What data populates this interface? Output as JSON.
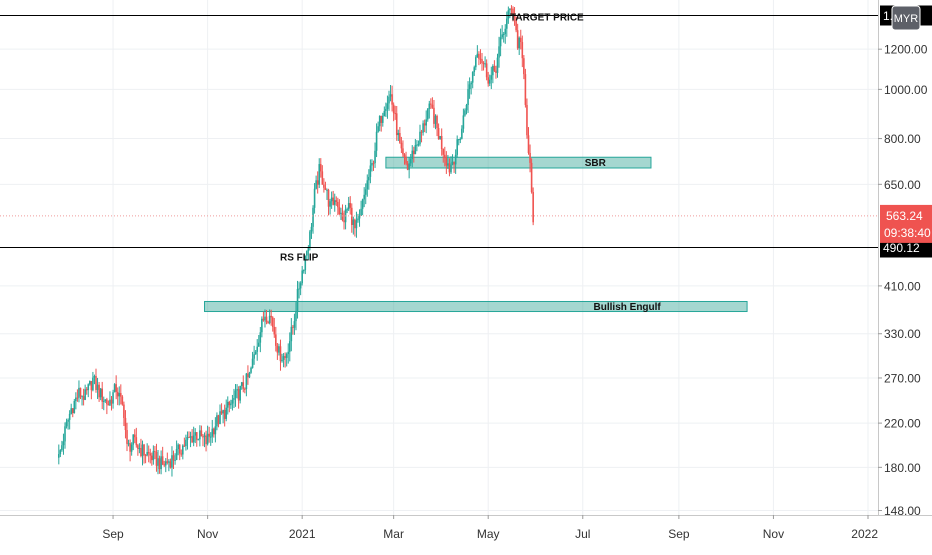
{
  "chart_data": {
    "type": "candlestick",
    "currency": "MYR",
    "y_scale": "log",
    "ylim": [
      145,
      1500
    ],
    "x_tick_labels": [
      "Sep",
      "Nov",
      "2021",
      "Mar",
      "May",
      "Jul",
      "Sep",
      "Nov",
      "2022"
    ],
    "y_tick_labels": [
      "148.00",
      "180.00",
      "220.00",
      "270.00",
      "330.00",
      "410.00",
      "650.00",
      "800.00",
      "1000.00",
      "1200.00"
    ],
    "y_tick_values": [
      148,
      180,
      220,
      270,
      330,
      410,
      650,
      800,
      1000,
      1200
    ],
    "last_price": {
      "label": "563.24",
      "value": 563.24,
      "countdown": "09:38:40"
    },
    "horizontal_lines": [
      {
        "label": "TARGET PRICE",
        "value": 1400,
        "axis_tag": "1...",
        "color": "#000000"
      },
      {
        "label": "RS FLIP",
        "value": 490.12,
        "axis_tag": "490.12",
        "color": "#000000"
      }
    ],
    "zones": [
      {
        "label": "SBR",
        "low": 700,
        "high": 735,
        "start": "2021-02-24",
        "end": "2021-08-14"
      },
      {
        "label": "Bullish Engulf",
        "low": 365,
        "high": 382,
        "start": "2020-10-30",
        "end": "2021-10-15"
      }
    ],
    "price_path": [
      [
        "2020-07-28",
        188
      ],
      [
        "2020-08-01",
        212
      ],
      [
        "2020-08-05",
        235
      ],
      [
        "2020-08-10",
        252
      ],
      [
        "2020-08-14",
        248
      ],
      [
        "2020-08-19",
        268
      ],
      [
        "2020-08-24",
        250
      ],
      [
        "2020-08-29",
        240
      ],
      [
        "2020-09-03",
        258
      ],
      [
        "2020-09-08",
        232
      ],
      [
        "2020-09-10",
        196
      ],
      [
        "2020-09-14",
        202
      ],
      [
        "2020-09-20",
        194
      ],
      [
        "2020-09-27",
        188
      ],
      [
        "2020-10-03",
        182
      ],
      [
        "2020-10-10",
        188
      ],
      [
        "2020-10-17",
        200
      ],
      [
        "2020-10-24",
        210
      ],
      [
        "2020-10-31",
        202
      ],
      [
        "2020-11-07",
        222
      ],
      [
        "2020-11-14",
        235
      ],
      [
        "2020-11-21",
        252
      ],
      [
        "2020-11-28",
        272
      ],
      [
        "2020-12-03",
        318
      ],
      [
        "2020-12-08",
        362
      ],
      [
        "2020-12-12",
        355
      ],
      [
        "2020-12-17",
        302
      ],
      [
        "2020-12-21",
        296
      ],
      [
        "2020-12-26",
        340
      ],
      [
        "2020-12-30",
        410
      ],
      [
        "2021-01-03",
        470
      ],
      [
        "2021-01-06",
        515
      ],
      [
        "2021-01-09",
        620
      ],
      [
        "2021-01-12",
        690
      ],
      [
        "2021-01-15",
        655
      ],
      [
        "2021-01-19",
        588
      ],
      [
        "2021-01-23",
        612
      ],
      [
        "2021-01-27",
        546
      ],
      [
        "2021-01-31",
        592
      ],
      [
        "2021-02-04",
        528
      ],
      [
        "2021-02-07",
        552
      ],
      [
        "2021-02-11",
        640
      ],
      [
        "2021-02-15",
        705
      ],
      [
        "2021-02-19",
        838
      ],
      [
        "2021-02-23",
        935
      ],
      [
        "2021-02-27",
        975
      ],
      [
        "2021-03-02",
        870
      ],
      [
        "2021-03-06",
        740
      ],
      [
        "2021-03-10",
        700
      ],
      [
        "2021-03-14",
        760
      ],
      [
        "2021-03-19",
        820
      ],
      [
        "2021-03-23",
        910
      ],
      [
        "2021-03-26",
        905
      ],
      [
        "2021-03-29",
        835
      ],
      [
        "2021-04-02",
        760
      ],
      [
        "2021-04-06",
        700
      ],
      [
        "2021-04-10",
        750
      ],
      [
        "2021-04-14",
        840
      ],
      [
        "2021-04-17",
        955
      ],
      [
        "2021-04-21",
        1080
      ],
      [
        "2021-04-24",
        1205
      ],
      [
        "2021-04-28",
        1125
      ],
      [
        "2021-05-02",
        1040
      ],
      [
        "2021-05-06",
        1110
      ],
      [
        "2021-05-10",
        1275
      ],
      [
        "2021-05-14",
        1395
      ],
      [
        "2021-05-16",
        1470
      ],
      [
        "2021-05-18",
        1390
      ],
      [
        "2021-05-20",
        1225
      ],
      [
        "2021-05-22",
        1265
      ],
      [
        "2021-05-24",
        1040
      ],
      [
        "2021-05-26",
        810
      ],
      [
        "2021-05-28",
        700
      ],
      [
        "2021-05-29",
        620
      ],
      [
        "2021-05-30",
        563.24
      ]
    ]
  }
}
